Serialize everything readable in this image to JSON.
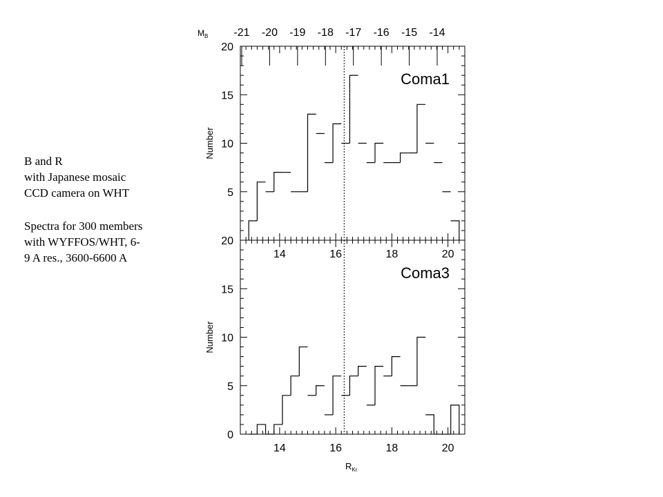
{
  "notes": [
    {
      "lines": [
        "B and R",
        "with Japanese mosaic",
        "CCD camera on WHT"
      ]
    },
    {
      "lines": [
        "Spectra for 300 members",
        "with WYFFOS/WHT,  6-",
        "9 A res., 3600-6600 A"
      ]
    }
  ],
  "chart_data": {
    "type": "bar",
    "xlabel": "R",
    "xlabel_sub": "Kr",
    "top_axis_label": "M",
    "top_axis_label_sub": "B",
    "xlim": [
      12.6,
      20.6
    ],
    "x_ticks": [
      14,
      16,
      18,
      20
    ],
    "top_ticks": [
      "-21",
      "-20",
      "-19",
      "-18",
      "-17",
      "-16",
      "-15",
      "-14"
    ],
    "bin_start": 12.9,
    "bin_width": 0.3,
    "vline_x": 16.3,
    "panels": [
      {
        "name": "Coma1",
        "ylabel": "Number",
        "ylim": [
          0,
          20
        ],
        "y_ticks": [
          5,
          10,
          15,
          20
        ],
        "values": [
          2,
          6,
          5,
          7,
          7,
          5,
          5,
          13,
          11,
          8,
          12,
          10,
          17,
          10,
          8,
          10,
          8,
          8,
          9,
          9,
          14,
          10,
          8,
          5,
          2
        ]
      },
      {
        "name": "Coma3",
        "ylabel": "Number",
        "ylim": [
          0,
          20
        ],
        "y_ticks": [
          0,
          5,
          10,
          15,
          20
        ],
        "values": [
          0,
          1,
          0,
          1,
          4,
          6,
          9,
          4,
          5,
          2,
          6,
          4,
          6,
          7,
          3,
          7,
          6,
          8,
          5,
          5,
          10,
          2,
          0,
          0,
          3
        ]
      }
    ]
  }
}
